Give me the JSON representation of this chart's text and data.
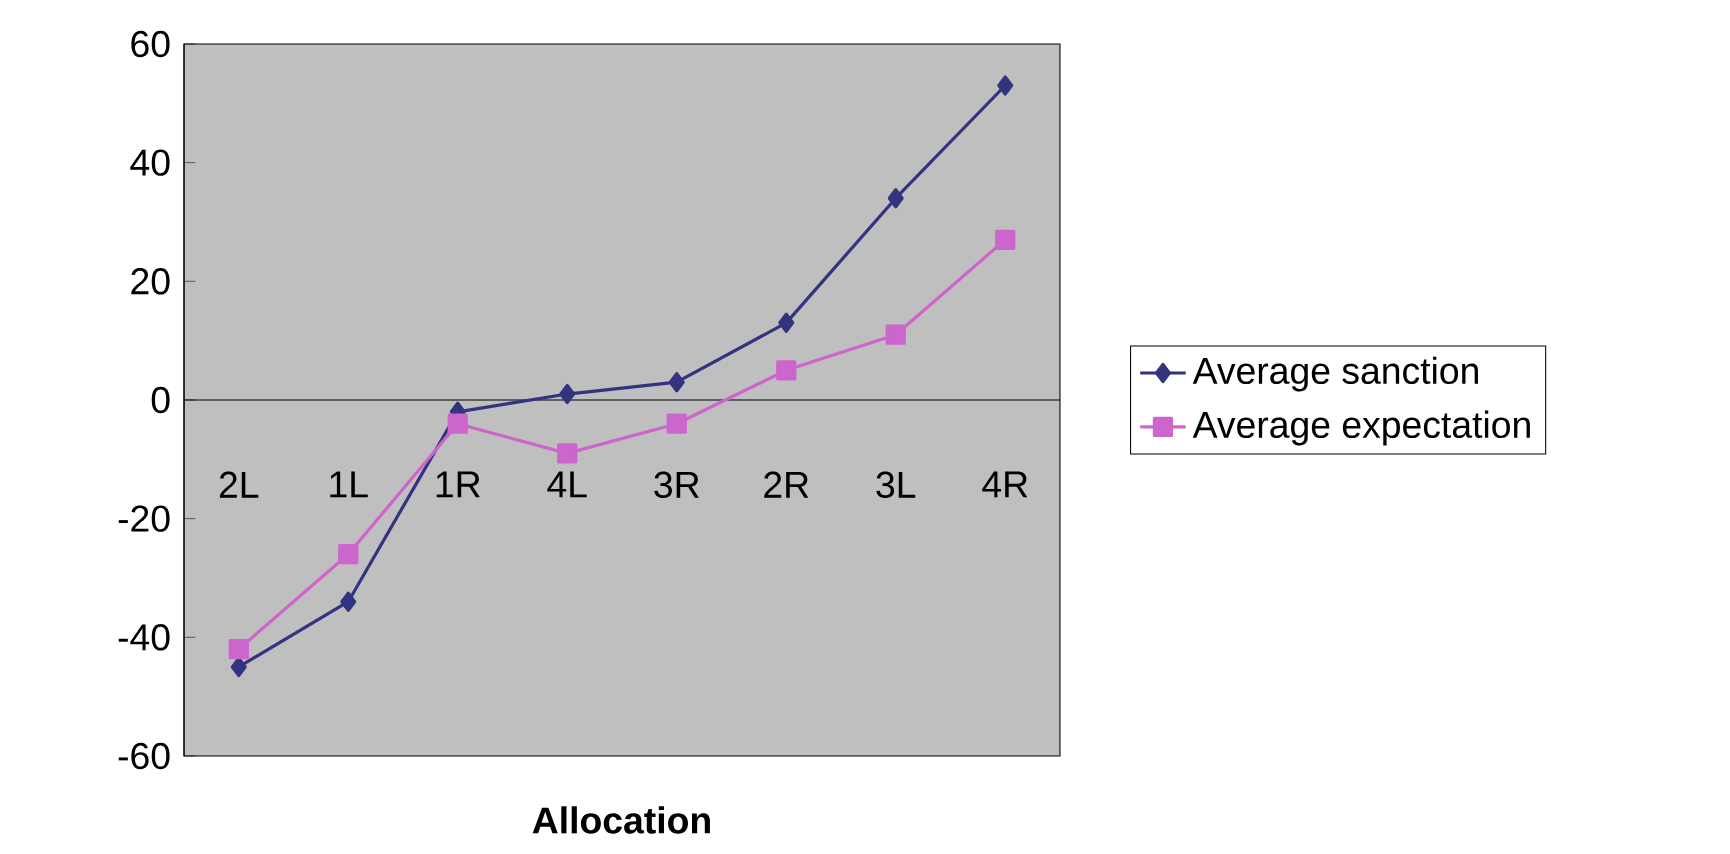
{
  "chart_data": {
    "type": "line",
    "xlabel": "Allocation",
    "categories": [
      "2L",
      "1L",
      "1R",
      "4L",
      "3R",
      "2R",
      "3L",
      "4R"
    ],
    "series": [
      {
        "name": "Average sanction",
        "color": "#333380",
        "marker": "diamond",
        "values": [
          -45,
          -34,
          -2,
          1,
          3,
          13,
          34,
          53
        ]
      },
      {
        "name": "Average expectation",
        "color": "#cc66cc",
        "marker": "square",
        "values": [
          -42,
          -26,
          -4,
          -9,
          -4,
          5,
          11,
          27
        ]
      }
    ],
    "ylim": [
      -60,
      60
    ],
    "yticks": [
      -60,
      -40,
      -20,
      0,
      20,
      40,
      60
    ],
    "legend": "right",
    "grid": false,
    "line_style": "solid"
  }
}
